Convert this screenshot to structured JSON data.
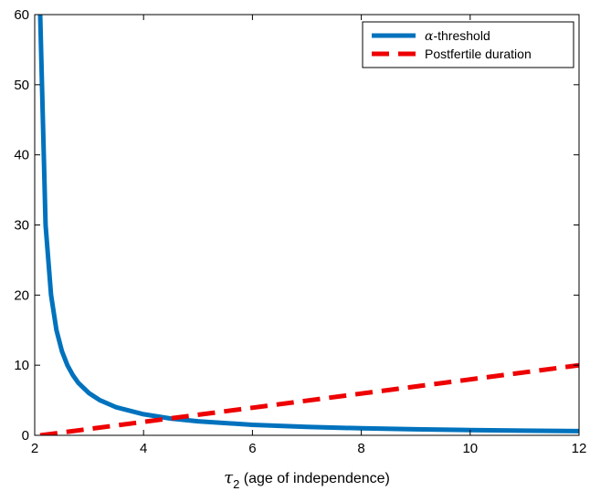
{
  "chart_data": {
    "type": "line",
    "title": "",
    "xlabel": {
      "symbol": "τ",
      "subscript": "2",
      "text": " (age of independence)"
    },
    "ylabel": "",
    "xlim": [
      2,
      12
    ],
    "ylim": [
      0,
      60
    ],
    "xticks": [
      "2",
      "4",
      "6",
      "8",
      "10",
      "12"
    ],
    "yticks": [
      "0",
      "10",
      "20",
      "30",
      "40",
      "50",
      "60"
    ],
    "grid": false,
    "legend_position": "top-right",
    "series": [
      {
        "name": {
          "symbol": "α",
          "text": "-threshold"
        },
        "color": "#0072BD",
        "style": "solid",
        "points": [
          [
            2.1,
            60
          ],
          [
            2.2,
            30
          ],
          [
            2.3,
            20
          ],
          [
            2.4,
            15
          ],
          [
            2.5,
            12
          ],
          [
            2.6,
            10
          ],
          [
            2.7,
            8.6
          ],
          [
            2.8,
            7.5
          ],
          [
            3.0,
            6.0
          ],
          [
            3.2,
            5.0
          ],
          [
            3.5,
            4.0
          ],
          [
            4.0,
            3.0
          ],
          [
            4.5,
            2.4
          ],
          [
            5.0,
            2.0
          ],
          [
            6.0,
            1.5
          ],
          [
            7.0,
            1.2
          ],
          [
            8.0,
            1.0
          ],
          [
            9.0,
            0.86
          ],
          [
            10.0,
            0.75
          ],
          [
            11.0,
            0.67
          ],
          [
            12.0,
            0.6
          ]
        ]
      },
      {
        "name": {
          "symbol": "",
          "text": "Postfertile duration"
        },
        "color": "#EE0000",
        "style": "dashed",
        "points": [
          [
            2.1,
            0.0
          ],
          [
            12.0,
            10.0
          ]
        ]
      }
    ]
  }
}
